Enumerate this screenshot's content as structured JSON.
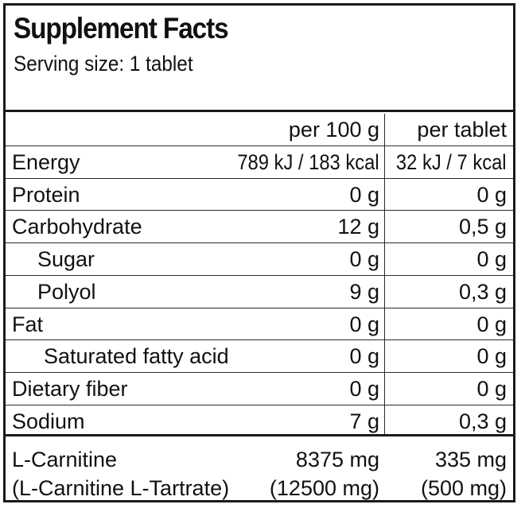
{
  "title": "Supplement Facts",
  "serving_size": "Serving size: 1 tablet",
  "columns": {
    "per100": "per 100 g",
    "perTablet": "per tablet"
  },
  "rows": [
    {
      "label": "Energy",
      "per100": "789 kJ / 183 kcal",
      "perTablet": "32 kJ / 7 kcal",
      "indent": 0
    },
    {
      "label": "Protein",
      "per100": "0 g",
      "perTablet": "0 g",
      "indent": 0
    },
    {
      "label": "Carbohydrate",
      "per100": "12 g",
      "perTablet": "0,5 g",
      "indent": 0
    },
    {
      "label": "Sugar",
      "per100": "0 g",
      "perTablet": "0 g",
      "indent": 1
    },
    {
      "label": "Polyol",
      "per100": "9 g",
      "perTablet": "0,3 g",
      "indent": 1
    },
    {
      "label": "Fat",
      "per100": "0 g",
      "perTablet": "0 g",
      "indent": 0
    },
    {
      "label": "Saturated fatty acid",
      "per100": "0 g",
      "perTablet": "0 g",
      "indent": 2
    },
    {
      "label": "Dietary fiber",
      "per100": "0 g",
      "perTablet": "0 g",
      "indent": 0
    },
    {
      "label": "Sodium",
      "per100": "7 g",
      "perTablet": "0,3 g",
      "indent": 0
    }
  ],
  "carnitine": {
    "label": "L-Carnitine",
    "per100": "8375 mg",
    "perTablet": "335 mg",
    "sub_label": "(L-Carnitine L-Tartrate)",
    "sub_per100": "(12500 mg)",
    "sub_perTablet": "(500 mg)"
  }
}
